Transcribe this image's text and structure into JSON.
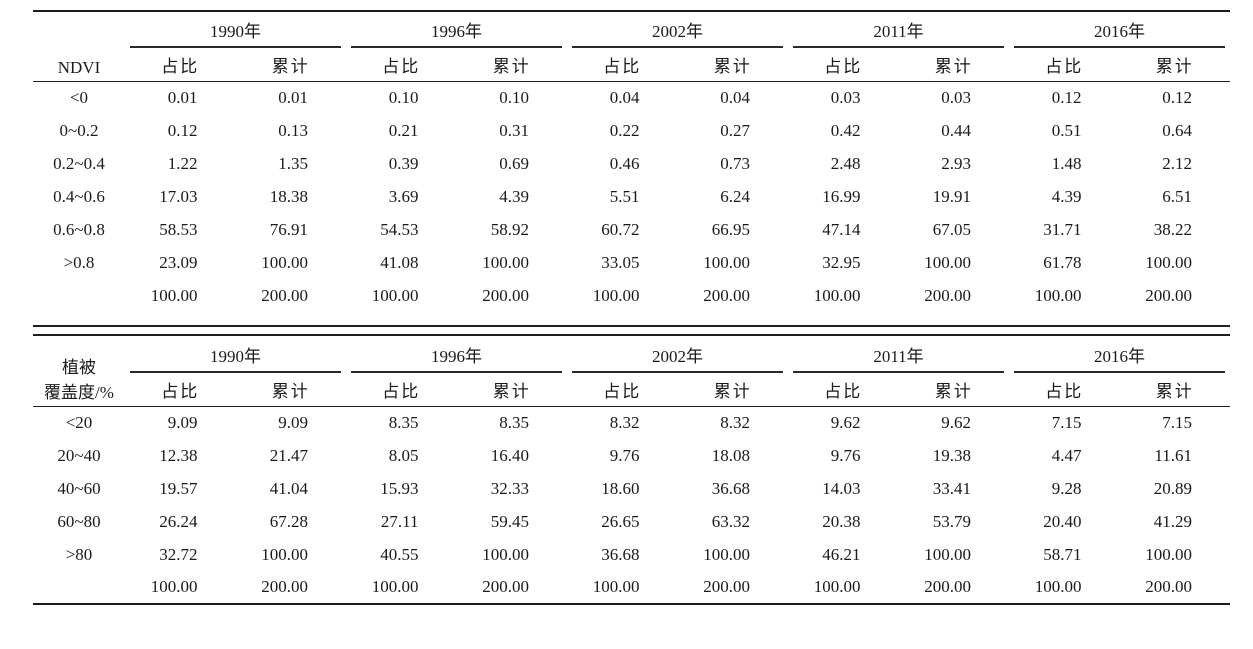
{
  "page": {
    "background": "#ffffff",
    "text_color": "#1a1a1a",
    "rule_color": "#1c1c1c"
  },
  "columns": {
    "years": [
      "1990年",
      "1996年",
      "2002年",
      "2011年",
      "2016年"
    ],
    "sub_headers": [
      "占比",
      "累计"
    ]
  },
  "tables": [
    {
      "id": "ndvi",
      "label_lines": [
        "NDVI"
      ],
      "rows": [
        {
          "category": "<0",
          "values": [
            "0.01",
            "0.01",
            "0.10",
            "0.10",
            "0.04",
            "0.04",
            "0.03",
            "0.03",
            "0.12",
            "0.12"
          ]
        },
        {
          "category": "0~0.2",
          "values": [
            "0.12",
            "0.13",
            "0.21",
            "0.31",
            "0.22",
            "0.27",
            "0.42",
            "0.44",
            "0.51",
            "0.64"
          ]
        },
        {
          "category": "0.2~0.4",
          "values": [
            "1.22",
            "1.35",
            "0.39",
            "0.69",
            "0.46",
            "0.73",
            "2.48",
            "2.93",
            "1.48",
            "2.12"
          ]
        },
        {
          "category": "0.4~0.6",
          "values": [
            "17.03",
            "18.38",
            "3.69",
            "4.39",
            "5.51",
            "6.24",
            "16.99",
            "19.91",
            "4.39",
            "6.51"
          ]
        },
        {
          "category": "0.6~0.8",
          "values": [
            "58.53",
            "76.91",
            "54.53",
            "58.92",
            "60.72",
            "66.95",
            "47.14",
            "67.05",
            "31.71",
            "38.22"
          ]
        },
        {
          "category": ">0.8",
          "values": [
            "23.09",
            "100.00",
            "41.08",
            "100.00",
            "33.05",
            "100.00",
            "32.95",
            "100.00",
            "61.78",
            "100.00"
          ]
        },
        {
          "category": "",
          "values": [
            "100.00",
            "200.00",
            "100.00",
            "200.00",
            "100.00",
            "200.00",
            "100.00",
            "200.00",
            "100.00",
            "200.00"
          ]
        }
      ]
    },
    {
      "id": "vegetation-coverage",
      "label_lines": [
        "植被",
        "覆盖度/%"
      ],
      "rows": [
        {
          "category": "<20",
          "values": [
            "9.09",
            "9.09",
            "8.35",
            "8.35",
            "8.32",
            "8.32",
            "9.62",
            "9.62",
            "7.15",
            "7.15"
          ]
        },
        {
          "category": "20~40",
          "values": [
            "12.38",
            "21.47",
            "8.05",
            "16.40",
            "9.76",
            "18.08",
            "9.76",
            "19.38",
            "4.47",
            "11.61"
          ]
        },
        {
          "category": "40~60",
          "values": [
            "19.57",
            "41.04",
            "15.93",
            "32.33",
            "18.60",
            "36.68",
            "14.03",
            "33.41",
            "9.28",
            "20.89"
          ]
        },
        {
          "category": "60~80",
          "values": [
            "26.24",
            "67.28",
            "27.11",
            "59.45",
            "26.65",
            "63.32",
            "20.38",
            "53.79",
            "20.40",
            "41.29"
          ]
        },
        {
          "category": ">80",
          "values": [
            "32.72",
            "100.00",
            "40.55",
            "100.00",
            "36.68",
            "100.00",
            "46.21",
            "100.00",
            "58.71",
            "100.00"
          ]
        },
        {
          "category": "",
          "values": [
            "100.00",
            "200.00",
            "100.00",
            "200.00",
            "100.00",
            "200.00",
            "100.00",
            "200.00",
            "100.00",
            "200.00"
          ]
        }
      ]
    }
  ]
}
